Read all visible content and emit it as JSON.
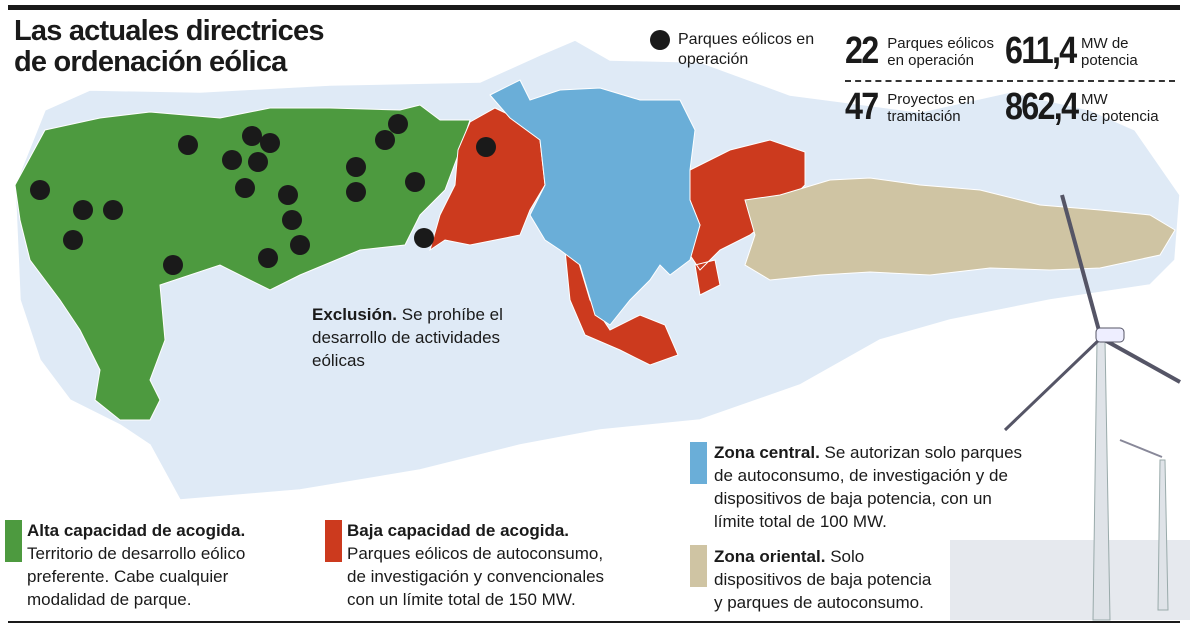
{
  "title": [
    "Las actuales directrices",
    "de ordenación eólica"
  ],
  "legend_dots": {
    "label_1": "Parques eólicos en",
    "label_2": "operación"
  },
  "stats": [
    {
      "value": "22",
      "label_1": "Parques eólicos",
      "label_2": "en operación"
    },
    {
      "value": "611,4",
      "label_1": "MW de",
      "label_2": "potencia"
    },
    {
      "value": "47",
      "label_1": "Proyectos en",
      "label_2": "tramitación"
    },
    {
      "value": "862,4",
      "label_1": "MW",
      "label_2": "de potencia"
    }
  ],
  "exclusion": {
    "head": "Exclusión.",
    "l1": " Se prohíbe el",
    "l2": "desarrollo de actividades",
    "l3": "eólicas"
  },
  "zones": {
    "alta": {
      "head": "Alta capacidad de acogida.",
      "l1": "Territorio de desarrollo eólico",
      "l2": "preferente. Cabe cualquier",
      "l3": "modalidad de parque.",
      "color": "#4d9a3f"
    },
    "baja": {
      "head": "Baja capacidad de acogida.",
      "l1": "Parques eólicos de autoconsumo,",
      "l2": "de investigación y convencionales",
      "l3": "con un límite total de 150 MW.",
      "color": "#cc3a1e"
    },
    "central": {
      "head": "Zona central.",
      "l0": " Se autorizan solo parques",
      "l1": "de autoconsumo, de investigación y de",
      "l2": "dispositivos de baja potencia, con un",
      "l3": "límite total de 100 MW.",
      "color": "#6aaed8"
    },
    "oriental": {
      "head": "Zona oriental.",
      "l0": " Solo",
      "l1": "dispositivos de baja potencia",
      "l2": "y parques de autoconsumo.",
      "color": "#cfc4a3"
    }
  },
  "colors": {
    "exclusion": "#dfeaf6"
  }
}
